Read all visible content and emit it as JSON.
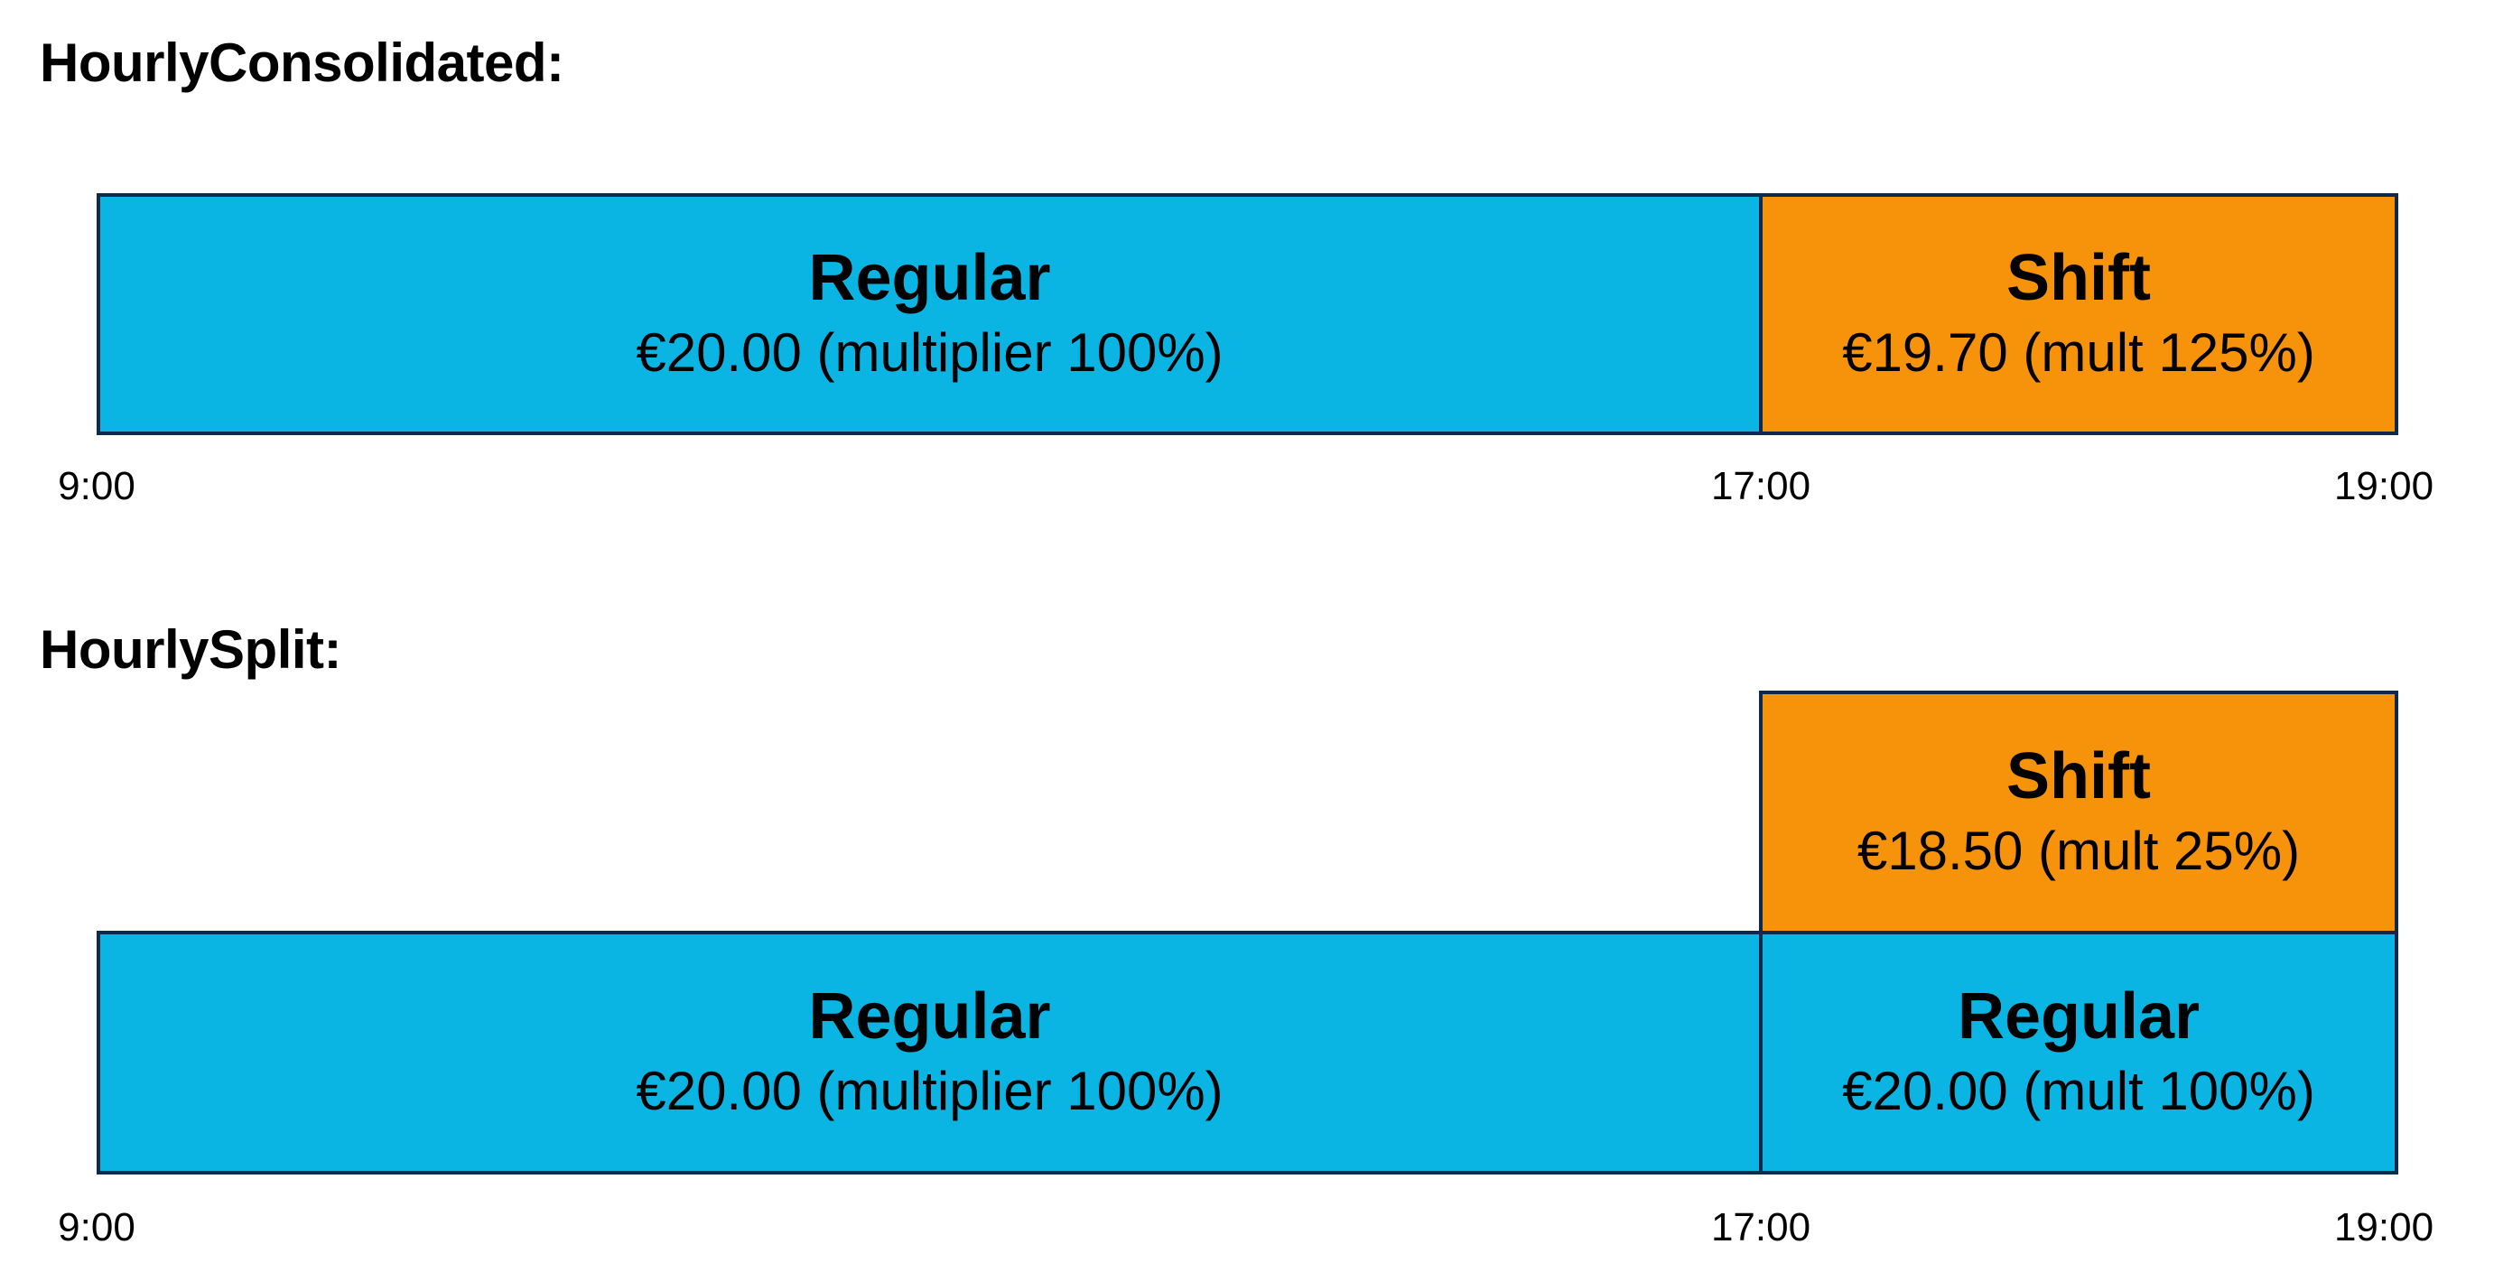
{
  "consolidated": {
    "title": "HourlyConsolidated:",
    "regular": {
      "name": "Regular",
      "detail": "€20.00 (multiplier 100%)"
    },
    "shift": {
      "name": "Shift",
      "detail": "€19.70 (mult 125%)"
    },
    "ticks": [
      "9:00",
      "17:00",
      "19:00"
    ]
  },
  "split": {
    "title": "HourlySplit:",
    "shift": {
      "name": "Shift",
      "detail": "€18.50 (mult 25%)"
    },
    "regular_main": {
      "name": "Regular",
      "detail": "€20.00 (multiplier 100%)"
    },
    "regular_extra": {
      "name": "Regular",
      "detail": "€20.00 (mult 100%)"
    },
    "ticks": [
      "9:00",
      "17:00",
      "19:00"
    ]
  },
  "colors": {
    "regular": "#0bb5e3",
    "shift": "#f7930a",
    "border": "#0d2a4a"
  }
}
